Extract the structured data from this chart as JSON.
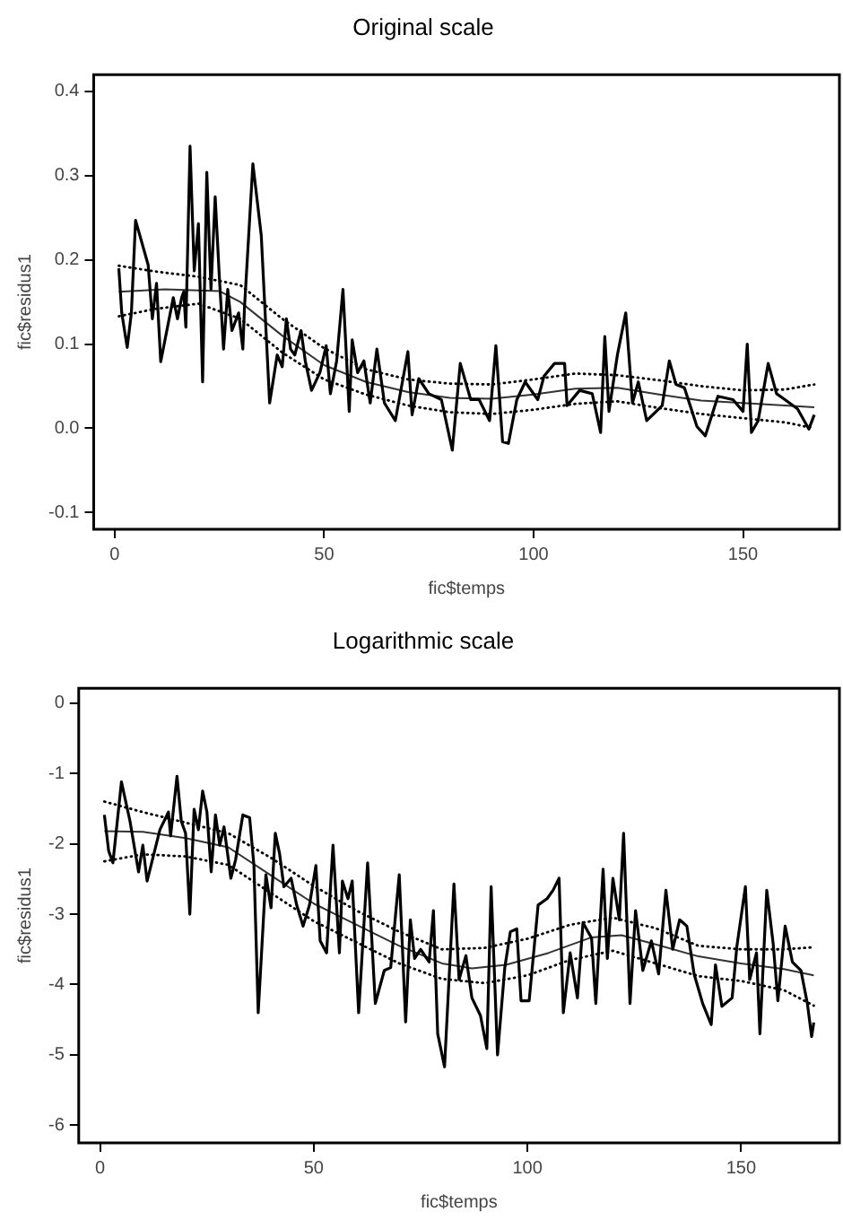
{
  "chart_data": [
    {
      "type": "line",
      "title": "Original scale",
      "xlabel": "fic$temps",
      "ylabel": "fic$residus1",
      "xlim": [
        -5,
        173
      ],
      "ylim": [
        -0.12,
        0.42
      ],
      "xticks": [
        0,
        50,
        100,
        150
      ],
      "yticks": [
        -0.1,
        {
          "value": 0,
          "label": "0.0"
        },
        0.1,
        0.2,
        0.3,
        0.4
      ],
      "grid": false,
      "marker": "none",
      "series": [
        {
          "type": "line",
          "color": "#000000",
          "line_style": "solid",
          "x": [
            1,
            1.7,
            3,
            4,
            5,
            8,
            9,
            10,
            11,
            14,
            15,
            16,
            16.5,
            17,
            18,
            19,
            20,
            21,
            22,
            23,
            24,
            25,
            26,
            27,
            28,
            29.6,
            30.6,
            31,
            33,
            35,
            37,
            38.8,
            40,
            41,
            42,
            43,
            44.5,
            45.5,
            47,
            49,
            50.5,
            51.5,
            53,
            54.5,
            56,
            56.7,
            58,
            59.5,
            61,
            62.6,
            64.4,
            67,
            70,
            71,
            72.6,
            75,
            78,
            80.6,
            82.5,
            85,
            87,
            89.5,
            91,
            92.6,
            94,
            96,
            98,
            101,
            102.5,
            105,
            107.4,
            108,
            111,
            114,
            116,
            117,
            118,
            120,
            122,
            123.6,
            125,
            127,
            130.7,
            132.4,
            134,
            136,
            139,
            141,
            144,
            147.6,
            150,
            151,
            152,
            153.6,
            156,
            158,
            160,
            163,
            165.7,
            167
          ],
          "values": [
            0.19,
            0.137,
            0.096,
            0.137,
            0.247,
            0.194,
            0.13,
            0.172,
            0.079,
            0.155,
            0.13,
            0.155,
            0.162,
            0.12,
            0.335,
            0.187,
            0.243,
            0.055,
            0.304,
            0.165,
            0.275,
            0.179,
            0.094,
            0.165,
            0.116,
            0.137,
            0.094,
            0.144,
            0.314,
            0.229,
            0.03,
            0.087,
            0.073,
            0.13,
            0.094,
            0.087,
            0.116,
            0.08,
            0.045,
            0.066,
            0.098,
            0.041,
            0.08,
            0.165,
            0.02,
            0.105,
            0.066,
            0.08,
            0.03,
            0.094,
            0.03,
            0.009,
            0.091,
            0.016,
            0.059,
            0.041,
            0.034,
            -0.026,
            0.077,
            0.034,
            0.034,
            0.009,
            0.098,
            -0.016,
            -0.018,
            0.034,
            0.055,
            0.034,
            0.062,
            0.077,
            0.077,
            0.027,
            0.045,
            0.041,
            -0.005,
            0.109,
            0.02,
            0.087,
            0.137,
            0.03,
            0.055,
            0.009,
            0.027,
            0.08,
            0.052,
            0.048,
            0.002,
            -0.009,
            0.038,
            0.034,
            0.02,
            0.1,
            -0.005,
            0.009,
            0.077,
            0.041,
            0.034,
            0.023,
            -0.001,
            0.016
          ]
        },
        {
          "type": "line",
          "color": "#333333",
          "line_style": "solid",
          "x": [
            1,
            12,
            25,
            30,
            40,
            50,
            60,
            70,
            80,
            90,
            100,
            110,
            120,
            130,
            140,
            150,
            160,
            167
          ],
          "values": [
            0.162,
            0.165,
            0.163,
            0.15,
            0.11,
            0.075,
            0.055,
            0.043,
            0.036,
            0.035,
            0.04,
            0.047,
            0.048,
            0.04,
            0.033,
            0.03,
            0.027,
            0.025
          ]
        },
        {
          "type": "line",
          "color": "#000000",
          "line_style": "dotted",
          "x": [
            1,
            10,
            20,
            30,
            40,
            50,
            60,
            70,
            80,
            90,
            100,
            110,
            120,
            130,
            140,
            150,
            160,
            167
          ],
          "values": [
            0.193,
            0.186,
            0.18,
            0.17,
            0.13,
            0.095,
            0.07,
            0.058,
            0.053,
            0.052,
            0.058,
            0.065,
            0.063,
            0.057,
            0.05,
            0.045,
            0.046,
            0.052
          ]
        },
        {
          "type": "line",
          "color": "#000000",
          "line_style": "dotted",
          "x": [
            1,
            10,
            20,
            30,
            40,
            50,
            60,
            70,
            80,
            90,
            100,
            110,
            120,
            130,
            140,
            150,
            160,
            167
          ],
          "values": [
            0.133,
            0.142,
            0.148,
            0.13,
            0.09,
            0.058,
            0.04,
            0.027,
            0.019,
            0.017,
            0.022,
            0.029,
            0.032,
            0.024,
            0.017,
            0.012,
            0.007,
            0.0
          ]
        }
      ]
    },
    {
      "type": "line",
      "title": "Logarithmic scale",
      "xlabel": "fic$temps",
      "ylabel": "fic$residus1",
      "xlim": [
        -5,
        173
      ],
      "ylim": [
        -6.25,
        0.21
      ],
      "xticks": [
        0,
        50,
        100,
        150
      ],
      "yticks": [
        -6,
        -5,
        -4,
        -3,
        -2,
        -1,
        0
      ],
      "grid": false,
      "marker": "none",
      "series": [
        {
          "type": "line",
          "color": "#000000",
          "line_style": "solid",
          "x": [
            1,
            2,
            3,
            5,
            7,
            9,
            10,
            11,
            14,
            16,
            16.5,
            18,
            19,
            20,
            21,
            22,
            23,
            24,
            25,
            26,
            27,
            28,
            29,
            30.6,
            31.7,
            33.4,
            35,
            36,
            37,
            38.8,
            40,
            41,
            42,
            43,
            44.7,
            46,
            47.5,
            49,
            50.5,
            51.5,
            53,
            54.5,
            56,
            56.7,
            58,
            59,
            60.5,
            62.6,
            64.4,
            66.5,
            68,
            70,
            71.5,
            72.6,
            73.6,
            75,
            77,
            78,
            79,
            80.6,
            82.8,
            84,
            85.6,
            87,
            89,
            90.5,
            91.5,
            93,
            94.7,
            96,
            97.5,
            98.5,
            100.4,
            102.5,
            104.6,
            106,
            107.4,
            108.4,
            110,
            111.7,
            113,
            115,
            116,
            117.7,
            118.7,
            120,
            121.5,
            122.5,
            124,
            125.3,
            127,
            129,
            130.7,
            132.4,
            134,
            135.6,
            137.3,
            139,
            141,
            143,
            144,
            145.5,
            147.9,
            149,
            151,
            152,
            153.6,
            154.4,
            156,
            157.5,
            158.6,
            160.3,
            162,
            164,
            165.5,
            166.5,
            167
          ],
          "values": [
            -1.59,
            -2.1,
            -2.27,
            -1.12,
            -1.68,
            -2.4,
            -2.02,
            -2.53,
            -1.8,
            -1.55,
            -1.89,
            -1.04,
            -1.68,
            -1.85,
            -3.0,
            -1.51,
            -1.8,
            -1.25,
            -1.55,
            -2.4,
            -1.59,
            -2.02,
            -1.76,
            -2.49,
            -2.23,
            -1.59,
            -1.63,
            -2.31,
            -4.4,
            -2.44,
            -2.91,
            -1.85,
            -2.14,
            -2.61,
            -2.49,
            -2.87,
            -3.17,
            -2.87,
            -2.31,
            -3.38,
            -3.55,
            -2.02,
            -3.55,
            -2.53,
            -2.78,
            -2.53,
            -4.4,
            -2.27,
            -4.27,
            -3.8,
            -3.76,
            -2.44,
            -4.53,
            -3.08,
            -3.63,
            -3.5,
            -3.68,
            -2.95,
            -4.7,
            -5.17,
            -2.57,
            -3.93,
            -3.59,
            -4.19,
            -4.44,
            -4.91,
            -2.61,
            -5.0,
            -3.76,
            -3.25,
            -3.21,
            -4.23,
            -4.23,
            -2.87,
            -2.78,
            -2.66,
            -2.49,
            -4.4,
            -3.55,
            -4.19,
            -3.12,
            -3.34,
            -4.27,
            -2.36,
            -3.63,
            -2.49,
            -3.08,
            -1.85,
            -4.27,
            -2.95,
            -3.8,
            -3.38,
            -3.85,
            -2.66,
            -3.5,
            -3.08,
            -3.17,
            -3.85,
            -4.27,
            -4.57,
            -3.72,
            -4.31,
            -4.19,
            -3.46,
            -2.61,
            -3.93,
            -3.55,
            -4.7,
            -2.66,
            -3.42,
            -4.23,
            -3.17,
            -3.68,
            -3.8,
            -4.27,
            -4.74,
            -4.54
          ]
        },
        {
          "type": "line",
          "color": "#333333",
          "line_style": "solid",
          "x": [
            1,
            10,
            20,
            30,
            40,
            50,
            60,
            70,
            80,
            87,
            95,
            105,
            115,
            122,
            130,
            140,
            150,
            160,
            167
          ],
          "values": [
            -1.82,
            -1.83,
            -1.92,
            -2.05,
            -2.45,
            -2.85,
            -3.15,
            -3.45,
            -3.7,
            -3.77,
            -3.72,
            -3.55,
            -3.33,
            -3.3,
            -3.43,
            -3.6,
            -3.7,
            -3.78,
            -3.87
          ]
        },
        {
          "type": "line",
          "color": "#000000",
          "line_style": "dotted",
          "x": [
            1,
            10,
            20,
            30,
            40,
            50,
            60,
            70,
            80,
            90,
            100,
            110,
            120,
            130,
            140,
            150,
            160,
            167
          ],
          "values": [
            -1.4,
            -1.55,
            -1.7,
            -1.85,
            -2.2,
            -2.6,
            -2.95,
            -3.25,
            -3.5,
            -3.48,
            -3.35,
            -3.15,
            -3.05,
            -3.2,
            -3.45,
            -3.5,
            -3.5,
            -3.47
          ]
        },
        {
          "type": "line",
          "color": "#000000",
          "line_style": "dotted",
          "x": [
            1,
            10,
            20,
            30,
            40,
            50,
            60,
            70,
            80,
            90,
            100,
            110,
            120,
            130,
            140,
            150,
            160,
            167
          ],
          "values": [
            -2.25,
            -2.15,
            -2.18,
            -2.3,
            -2.7,
            -3.1,
            -3.4,
            -3.7,
            -3.92,
            -3.98,
            -3.87,
            -3.65,
            -3.52,
            -3.7,
            -3.88,
            -3.95,
            -4.08,
            -4.3
          ]
        }
      ]
    }
  ]
}
